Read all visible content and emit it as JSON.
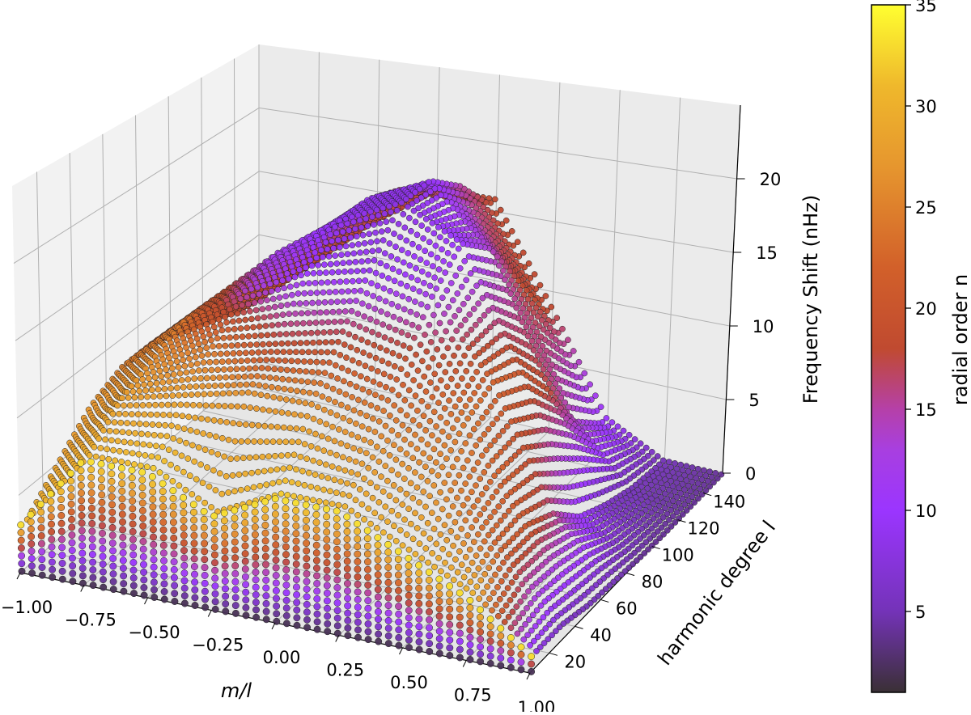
{
  "chart_data": {
    "type": "scatter3d",
    "title": "",
    "xlabel": "m/l",
    "ylabel": "harmonic degree l",
    "zlabel": "Frequency Shift (nHz)",
    "colorbar_label": "radial order n",
    "xlim": [
      -1,
      1
    ],
    "ylim": [
      5,
      155
    ],
    "zlim": [
      0,
      25
    ],
    "clim": [
      1,
      35
    ],
    "grid": true,
    "x_ticks": [
      "-1.00",
      "-0.75",
      "-0.50",
      "-0.25",
      "0.00",
      "0.25",
      "0.50",
      "0.75",
      "1.00"
    ],
    "x_tick_values": [
      -1,
      -0.75,
      -0.5,
      -0.25,
      0,
      0.25,
      0.5,
      0.75,
      1
    ],
    "y_ticks": [
      "20",
      "40",
      "60",
      "80",
      "100",
      "120",
      "140"
    ],
    "y_tick_values": [
      20,
      40,
      60,
      80,
      100,
      120,
      140
    ],
    "z_ticks": [
      "0",
      "5",
      "10",
      "15",
      "20"
    ],
    "z_tick_values": [
      0,
      5,
      10,
      15,
      20
    ],
    "colorbar_ticks": [
      "5",
      "10",
      "15",
      "20",
      "25",
      "30",
      "35"
    ],
    "colorbar_tick_values": [
      5,
      10,
      15,
      20,
      25,
      30,
      35
    ],
    "colormap_stops": [
      {
        "n": 1,
        "color": "#3a3035"
      },
      {
        "n": 5,
        "color": "#7433b8"
      },
      {
        "n": 10,
        "color": "#9b35ff"
      },
      {
        "n": 13,
        "color": "#a83fe0"
      },
      {
        "n": 15,
        "color": "#b540a8"
      },
      {
        "n": 18,
        "color": "#c04a30"
      },
      {
        "n": 22,
        "color": "#d2602a"
      },
      {
        "n": 27,
        "color": "#e6962e"
      },
      {
        "n": 31,
        "color": "#efb82c"
      },
      {
        "n": 35,
        "color": "#ffff30"
      }
    ],
    "grid_m_over_l": [
      -1,
      -0.75,
      -0.5,
      -0.25,
      0,
      0.25,
      0.5,
      0.75,
      1
    ],
    "grid_l": [
      10,
      30,
      50,
      70,
      90,
      110,
      130,
      150
    ],
    "frequency_shift": [
      [
        3,
        8,
        8,
        6,
        8,
        8,
        6,
        4,
        1
      ],
      [
        5,
        10,
        11,
        12,
        12,
        11,
        9,
        5,
        1
      ],
      [
        7,
        11,
        13,
        14,
        15,
        14,
        11,
        5,
        0.5
      ],
      [
        8,
        12,
        15,
        17,
        18,
        17,
        12,
        4,
        0.3
      ],
      [
        8,
        12,
        16,
        19,
        21,
        19,
        11,
        2,
        0.1
      ],
      [
        7,
        11,
        15,
        19,
        21,
        17,
        8,
        1,
        0
      ],
      [
        6,
        10,
        14,
        18,
        19,
        13,
        4,
        0.3,
        0
      ],
      [
        5,
        9,
        13,
        16,
        16,
        9,
        2,
        0,
        0
      ]
    ],
    "radial_order": [
      [
        30,
        30,
        32,
        30,
        32,
        30,
        30,
        30,
        8
      ],
      [
        28,
        28,
        28,
        27,
        27,
        26,
        26,
        22,
        6
      ],
      [
        27,
        26,
        24,
        18,
        18,
        20,
        24,
        20,
        5
      ],
      [
        25,
        24,
        14,
        10,
        9,
        12,
        22,
        16,
        5
      ],
      [
        22,
        20,
        12,
        9,
        8,
        10,
        20,
        10,
        4
      ],
      [
        20,
        19,
        14,
        9,
        9,
        14,
        18,
        6,
        4
      ],
      [
        19,
        18,
        17,
        16,
        15,
        18,
        14,
        5,
        4
      ],
      [
        18,
        18,
        18,
        18,
        18,
        18,
        10,
        5,
        4
      ]
    ]
  }
}
